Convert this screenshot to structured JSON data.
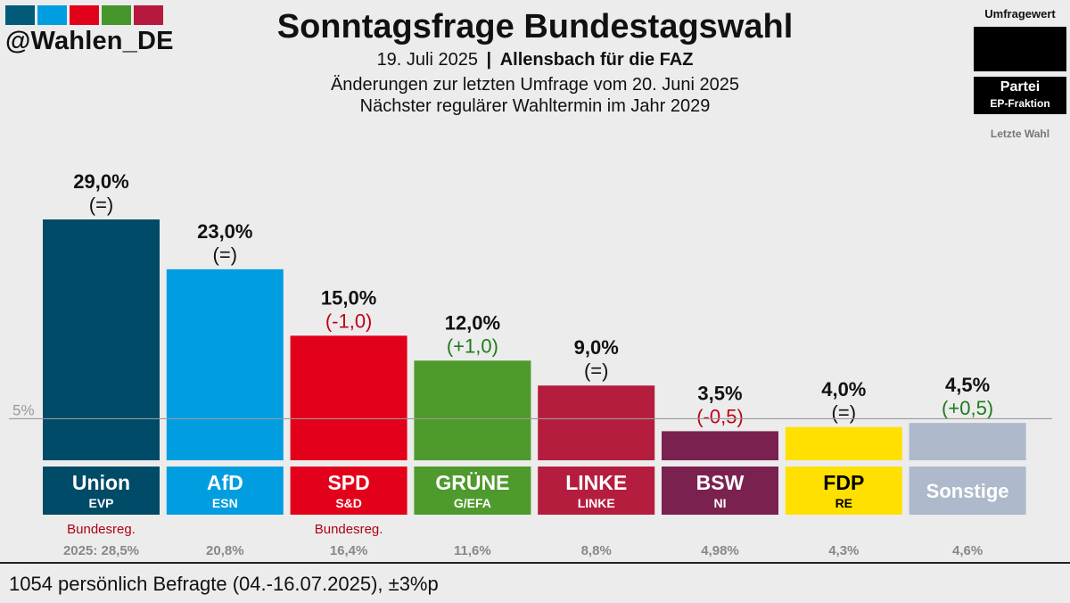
{
  "brand": {
    "handle": "@Wahlen_DE",
    "logo_colors": [
      "#005a78",
      "#009ee0",
      "#e3001b",
      "#46962b",
      "#b7193e"
    ]
  },
  "header": {
    "title": "Sonntagsfrage Bundestagswahl",
    "date": "19. Juli 2025",
    "separator": "|",
    "institute": "Allensbach für die FAZ",
    "changes_note": "Änderungen zur letzten Umfrage vom 20. Juni 2025",
    "next_election": "Nächster regulärer Wahltermin im Jahr 2029"
  },
  "legend": {
    "title": "Umfragewert",
    "party": "Partei",
    "faction": "EP-Fraktion",
    "last_election": "Letzte Wahl"
  },
  "chart_data": {
    "type": "bar",
    "title": "Sonntagsfrage Bundestagswahl",
    "unit": "%",
    "threshold": {
      "value": 5,
      "label": "5%"
    },
    "ylim": [
      0,
      29
    ],
    "categories": [
      "Union",
      "AfD",
      "SPD",
      "GRÜNE",
      "LINKE",
      "BSW",
      "FDP",
      "Sonstige"
    ],
    "factions": [
      "EVP",
      "ESN",
      "S&D",
      "G/EFA",
      "LINKE",
      "NI",
      "RE",
      ""
    ],
    "values": [
      29.0,
      23.0,
      15.0,
      12.0,
      9.0,
      3.5,
      4.0,
      4.5
    ],
    "value_labels": [
      "29,0%",
      "23,0%",
      "15,0%",
      "12,0%",
      "9,0%",
      "3,5%",
      "4,0%",
      "4,5%"
    ],
    "changes": [
      "(=)",
      "(=)",
      "(-1,0)",
      "(+1,0)",
      "(=)",
      "(-0,5)",
      "(=)",
      "(+0,5)"
    ],
    "change_direction": [
      "none",
      "none",
      "down",
      "up",
      "none",
      "down",
      "none",
      "up"
    ],
    "last_election": [
      28.5,
      20.8,
      16.4,
      11.6,
      8.8,
      4.98,
      4.3,
      4.6
    ],
    "last_election_labels": [
      "2025: 28,5%",
      "20,8%",
      "16,4%",
      "11,6%",
      "8,8%",
      "4,98%",
      "4,3%",
      "4,6%"
    ],
    "government_notes": [
      "Bundesreg.",
      "",
      "Bundesreg.",
      "",
      "",
      "",
      "",
      ""
    ],
    "colors": [
      "#004b67",
      "#009ee0",
      "#e3001b",
      "#4f9a2c",
      "#b51d3e",
      "#7b2150",
      "#ffe000",
      "#aeb9cb"
    ],
    "label_text_colors": [
      "#ffffff",
      "#ffffff",
      "#ffffff",
      "#ffffff",
      "#ffffff",
      "#ffffff",
      "#000000",
      "#ffffff"
    ],
    "change_colors": {
      "up": "#1f7a1f",
      "down": "#c0001a",
      "none": "#111111"
    },
    "gov_note_color": "#b00015",
    "last_election_color": "#888888",
    "threshold_color": "#999999"
  },
  "footer": {
    "text": "1054 persönlich Befragte (04.-16.07.2025), ±3%p"
  }
}
